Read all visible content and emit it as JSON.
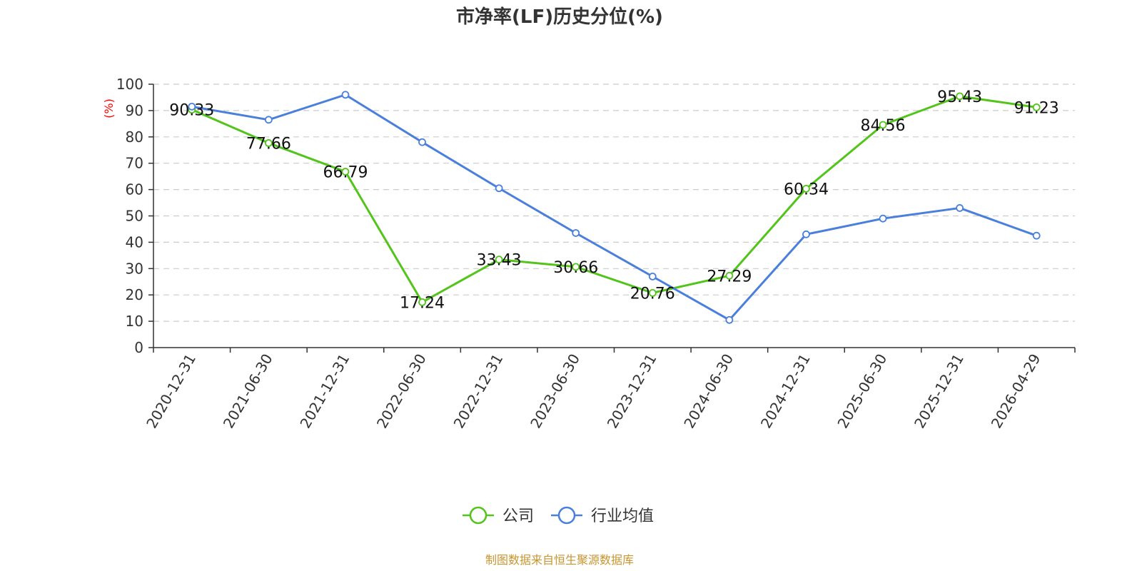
{
  "chart_data": {
    "type": "line",
    "title": "市净率(LF)历史分位(%)",
    "ylabel": "(%)",
    "xlabel": "",
    "ylim": [
      0,
      100
    ],
    "yticks": [
      0,
      10,
      20,
      30,
      40,
      50,
      60,
      70,
      80,
      90,
      100
    ],
    "categories": [
      "2020-12-31",
      "2021-06-30",
      "2021-12-31",
      "2022-06-30",
      "2022-12-31",
      "2023-06-30",
      "2023-12-31",
      "2024-06-30",
      "2024-12-31",
      "2025-06-30",
      "2025-12-31",
      "2026-04-29"
    ],
    "grid": true,
    "legend_position": "bottom",
    "series": [
      {
        "name": "公司",
        "color": "#52c41a",
        "values": [
          90.33,
          77.66,
          66.79,
          17.24,
          33.43,
          30.66,
          20.76,
          27.29,
          60.34,
          84.56,
          95.43,
          91.23
        ],
        "labels": [
          "90.33",
          "77.66",
          "66.79",
          "17.24",
          "33.43",
          "30.66",
          "20.76",
          "27.29",
          "60.34",
          "84.56",
          "95.43",
          "91.23"
        ],
        "show_labels": true
      },
      {
        "name": "行业均值",
        "color": "#4a7fdc",
        "values": [
          91.5,
          86.5,
          96.0,
          78.0,
          60.5,
          43.5,
          27.0,
          10.5,
          43.0,
          49.0,
          53.0,
          42.5
        ],
        "show_labels": false
      }
    ]
  },
  "source": "制图数据来自恒生聚源数据库"
}
